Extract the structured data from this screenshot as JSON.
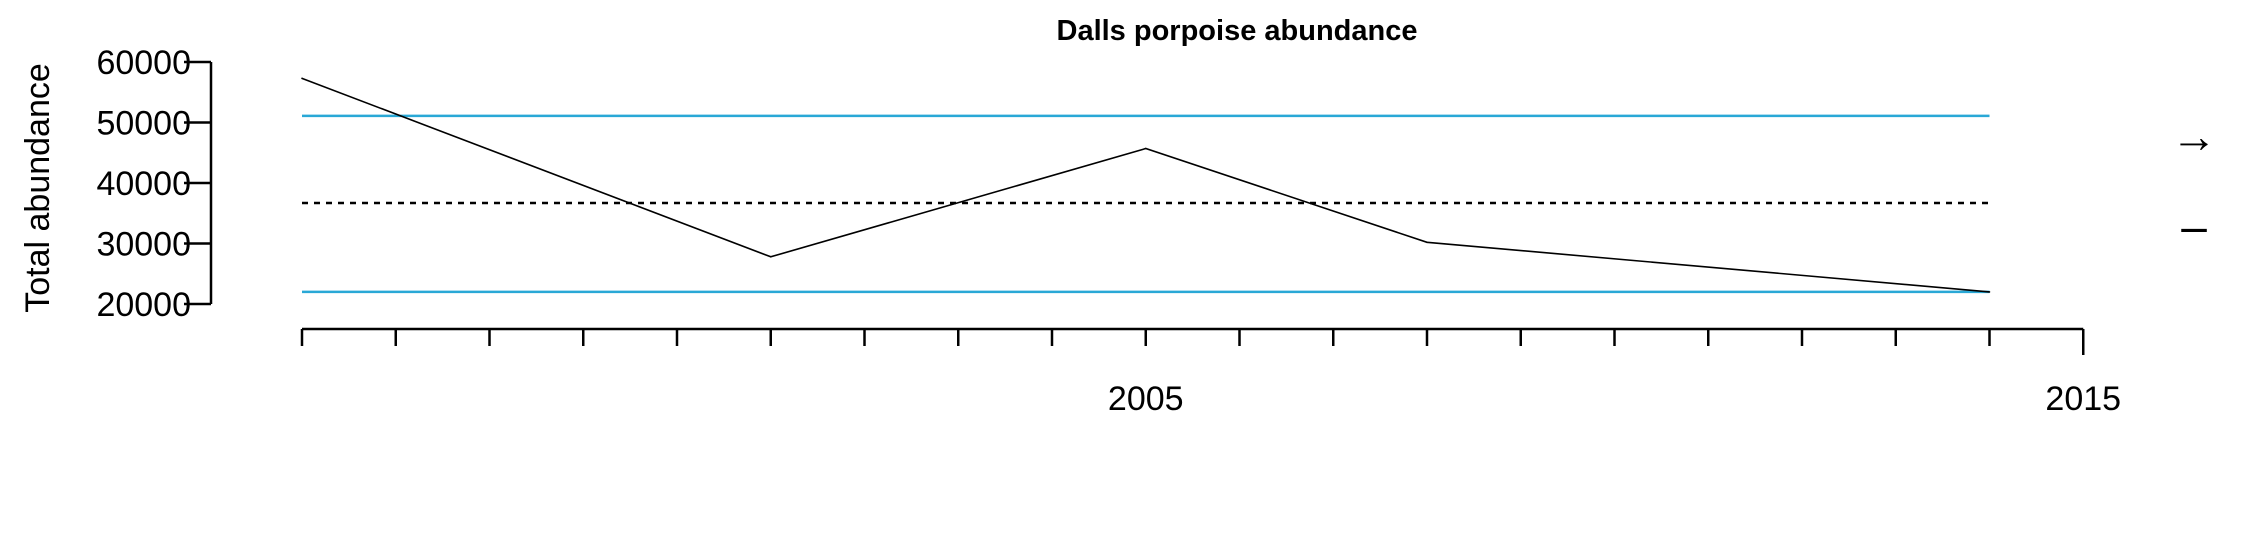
{
  "chart_data": {
    "type": "line",
    "title": "Dalls porpoise abundance",
    "ylabel": "Total abundance",
    "xlabel": "",
    "x_tick_labels": [
      "2005",
      "2015"
    ],
    "y_tick_labels": [
      "20000",
      "30000",
      "40000",
      "50000",
      "60000"
    ],
    "ylim": [
      20000,
      60000
    ],
    "grid": false,
    "series": [
      {
        "x": [
          1996,
          2001,
          2005,
          2008,
          2014
        ],
        "y": [
          57300,
          27800,
          45700,
          30200,
          22000
        ]
      }
    ],
    "reference_lines": {
      "mean": 36700,
      "upper": 51100,
      "lower": 22000
    },
    "colors": {
      "series": "#000000",
      "bounds": "#29a8d6",
      "mean": "#000000"
    },
    "margin_glyphs": [
      "→",
      "–"
    ]
  }
}
